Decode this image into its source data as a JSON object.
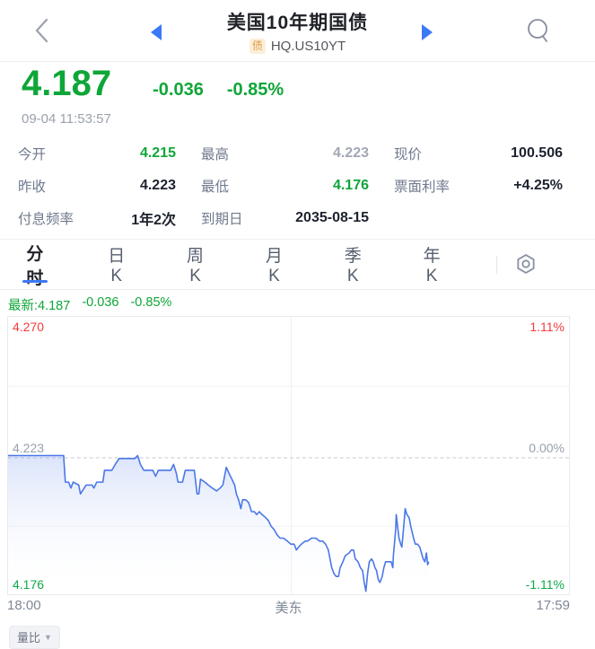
{
  "header": {
    "title": "美国10年期国债",
    "badge": "债",
    "symbol": "HQ.US10YT"
  },
  "quote": {
    "price": "4.187",
    "change": "-0.036",
    "change_pct": "-0.85%",
    "timestamp": "09-04 11:53:57"
  },
  "stats": {
    "rows": [
      [
        {
          "label": "今开",
          "value": "4.215",
          "color": "green"
        },
        {
          "label": "最高",
          "value": "4.223",
          "color": "muted"
        },
        {
          "label": "现价",
          "value": "100.506",
          "color": "dark"
        }
      ],
      [
        {
          "label": "昨收",
          "value": "4.223",
          "color": "dark"
        },
        {
          "label": "最低",
          "value": "4.176",
          "color": "green"
        },
        {
          "label": "票面利率",
          "value": "+4.25%",
          "color": "dark"
        }
      ],
      [
        {
          "label": "付息频率",
          "value": "1年2次",
          "color": "dark"
        },
        {
          "label": "到期日",
          "value": "2035-08-15",
          "color": "dark"
        },
        null
      ]
    ]
  },
  "tabs": {
    "items": [
      "分时",
      "日K",
      "周K",
      "月K",
      "季K",
      "年K"
    ],
    "active": 0,
    "settings_icon": "hex-nut-settings"
  },
  "latest_line": {
    "price": "最新:4.187",
    "change": "-0.036",
    "pct": "-0.85%"
  },
  "chart_data": {
    "type": "line",
    "title": "分时 intraday yield",
    "baseline": 4.223,
    "y_axis": {
      "max": 4.27,
      "mid": 4.223,
      "min": 4.176,
      "labels_left": [
        "4.270",
        "4.223",
        "4.176"
      ],
      "labels_right": [
        "1.11%",
        "0.00%",
        "-1.11%"
      ]
    },
    "x_axis": {
      "start": "18:00",
      "center": "美东",
      "end": "17:59"
    },
    "grid": {
      "v_frac": 0.505,
      "h_fracs": [
        0.25,
        0.755
      ],
      "mid_frac": 0.508,
      "grid_on": true
    },
    "line_color": "#4a77e8",
    "fill_top_color": "rgba(74,119,232,0.20)",
    "series": [
      {
        "name": "yield",
        "points": [
          [
            0.0,
            4.223
          ],
          [
            0.099,
            4.223
          ],
          [
            0.102,
            4.214
          ],
          [
            0.108,
            4.214
          ],
          [
            0.112,
            4.212
          ],
          [
            0.116,
            4.214
          ],
          [
            0.126,
            4.213
          ],
          [
            0.129,
            4.21
          ],
          [
            0.139,
            4.213
          ],
          [
            0.15,
            4.213
          ],
          [
            0.153,
            4.212
          ],
          [
            0.158,
            4.214
          ],
          [
            0.169,
            4.214
          ],
          [
            0.172,
            4.218
          ],
          [
            0.185,
            4.218
          ],
          [
            0.191,
            4.22
          ],
          [
            0.198,
            4.222
          ],
          [
            0.214,
            4.222
          ],
          [
            0.226,
            4.222
          ],
          [
            0.231,
            4.223
          ],
          [
            0.236,
            4.22
          ],
          [
            0.242,
            4.218
          ],
          [
            0.258,
            4.218
          ],
          [
            0.263,
            4.216
          ],
          [
            0.268,
            4.218
          ],
          [
            0.29,
            4.218
          ],
          [
            0.295,
            4.22
          ],
          [
            0.3,
            4.217
          ],
          [
            0.303,
            4.214
          ],
          [
            0.311,
            4.214
          ],
          [
            0.316,
            4.218
          ],
          [
            0.332,
            4.218
          ],
          [
            0.337,
            4.21
          ],
          [
            0.34,
            4.21
          ],
          [
            0.343,
            4.215
          ],
          [
            0.351,
            4.214
          ],
          [
            0.357,
            4.213
          ],
          [
            0.364,
            4.212
          ],
          [
            0.372,
            4.211
          ],
          [
            0.378,
            4.212
          ],
          [
            0.383,
            4.213
          ],
          [
            0.386,
            4.216
          ],
          [
            0.389,
            4.219
          ],
          [
            0.394,
            4.217
          ],
          [
            0.399,
            4.215
          ],
          [
            0.404,
            4.213
          ],
          [
            0.407,
            4.21
          ],
          [
            0.411,
            4.208
          ],
          [
            0.415,
            4.205
          ],
          [
            0.418,
            4.208
          ],
          [
            0.424,
            4.208
          ],
          [
            0.429,
            4.207
          ],
          [
            0.434,
            4.204
          ],
          [
            0.439,
            4.204
          ],
          [
            0.443,
            4.203
          ],
          [
            0.448,
            4.204
          ],
          [
            0.453,
            4.203
          ],
          [
            0.459,
            4.202
          ],
          [
            0.464,
            4.201
          ],
          [
            0.469,
            4.199
          ],
          [
            0.474,
            4.198
          ],
          [
            0.48,
            4.196
          ],
          [
            0.485,
            4.195
          ],
          [
            0.491,
            4.195
          ],
          [
            0.498,
            4.194
          ],
          [
            0.504,
            4.193
          ],
          [
            0.51,
            4.193
          ],
          [
            0.514,
            4.191
          ],
          [
            0.518,
            4.192
          ],
          [
            0.523,
            4.193
          ],
          [
            0.53,
            4.194
          ],
          [
            0.534,
            4.194
          ],
          [
            0.541,
            4.195
          ],
          [
            0.549,
            4.195
          ],
          [
            0.555,
            4.194
          ],
          [
            0.561,
            4.194
          ],
          [
            0.566,
            4.193
          ],
          [
            0.571,
            4.191
          ],
          [
            0.574,
            4.188
          ],
          [
            0.577,
            4.185
          ],
          [
            0.581,
            4.183
          ],
          [
            0.585,
            4.182
          ],
          [
            0.589,
            4.182
          ],
          [
            0.592,
            4.185
          ],
          [
            0.597,
            4.187
          ],
          [
            0.601,
            4.189
          ],
          [
            0.608,
            4.19
          ],
          [
            0.612,
            4.191
          ],
          [
            0.616,
            4.191
          ],
          [
            0.619,
            4.188
          ],
          [
            0.624,
            4.187
          ],
          [
            0.628,
            4.185
          ],
          [
            0.632,
            4.184
          ],
          [
            0.635,
            4.18
          ],
          [
            0.638,
            4.177
          ],
          [
            0.641,
            4.183
          ],
          [
            0.644,
            4.187
          ],
          [
            0.648,
            4.188
          ],
          [
            0.651,
            4.187
          ],
          [
            0.654,
            4.185
          ],
          [
            0.657,
            4.184
          ],
          [
            0.66,
            4.181
          ],
          [
            0.663,
            4.18
          ],
          [
            0.667,
            4.182
          ],
          [
            0.67,
            4.185
          ],
          [
            0.673,
            4.187
          ],
          [
            0.679,
            4.187
          ],
          [
            0.683,
            4.187
          ],
          [
            0.686,
            4.185
          ],
          [
            0.687,
            4.189
          ],
          [
            0.691,
            4.198
          ],
          [
            0.692,
            4.203
          ],
          [
            0.695,
            4.198
          ],
          [
            0.697,
            4.195
          ],
          [
            0.7,
            4.193
          ],
          [
            0.702,
            4.192
          ],
          [
            0.705,
            4.198
          ],
          [
            0.708,
            4.205
          ],
          [
            0.711,
            4.203
          ],
          [
            0.715,
            4.202
          ],
          [
            0.718,
            4.199
          ],
          [
            0.723,
            4.195
          ],
          [
            0.726,
            4.193
          ],
          [
            0.73,
            4.193
          ],
          [
            0.734,
            4.192
          ],
          [
            0.737,
            4.19
          ],
          [
            0.74,
            4.188
          ],
          [
            0.743,
            4.187
          ],
          [
            0.746,
            4.19
          ],
          [
            0.748,
            4.186
          ],
          [
            0.75,
            4.187
          ]
        ]
      }
    ]
  },
  "footer": {
    "volume_button": "量比",
    "caret_icon": "caret-down"
  },
  "colors": {
    "green": "#0fa638",
    "red": "#f23c3c",
    "nav_blue": "#3b78f5",
    "line_blue": "#4a77e8"
  }
}
